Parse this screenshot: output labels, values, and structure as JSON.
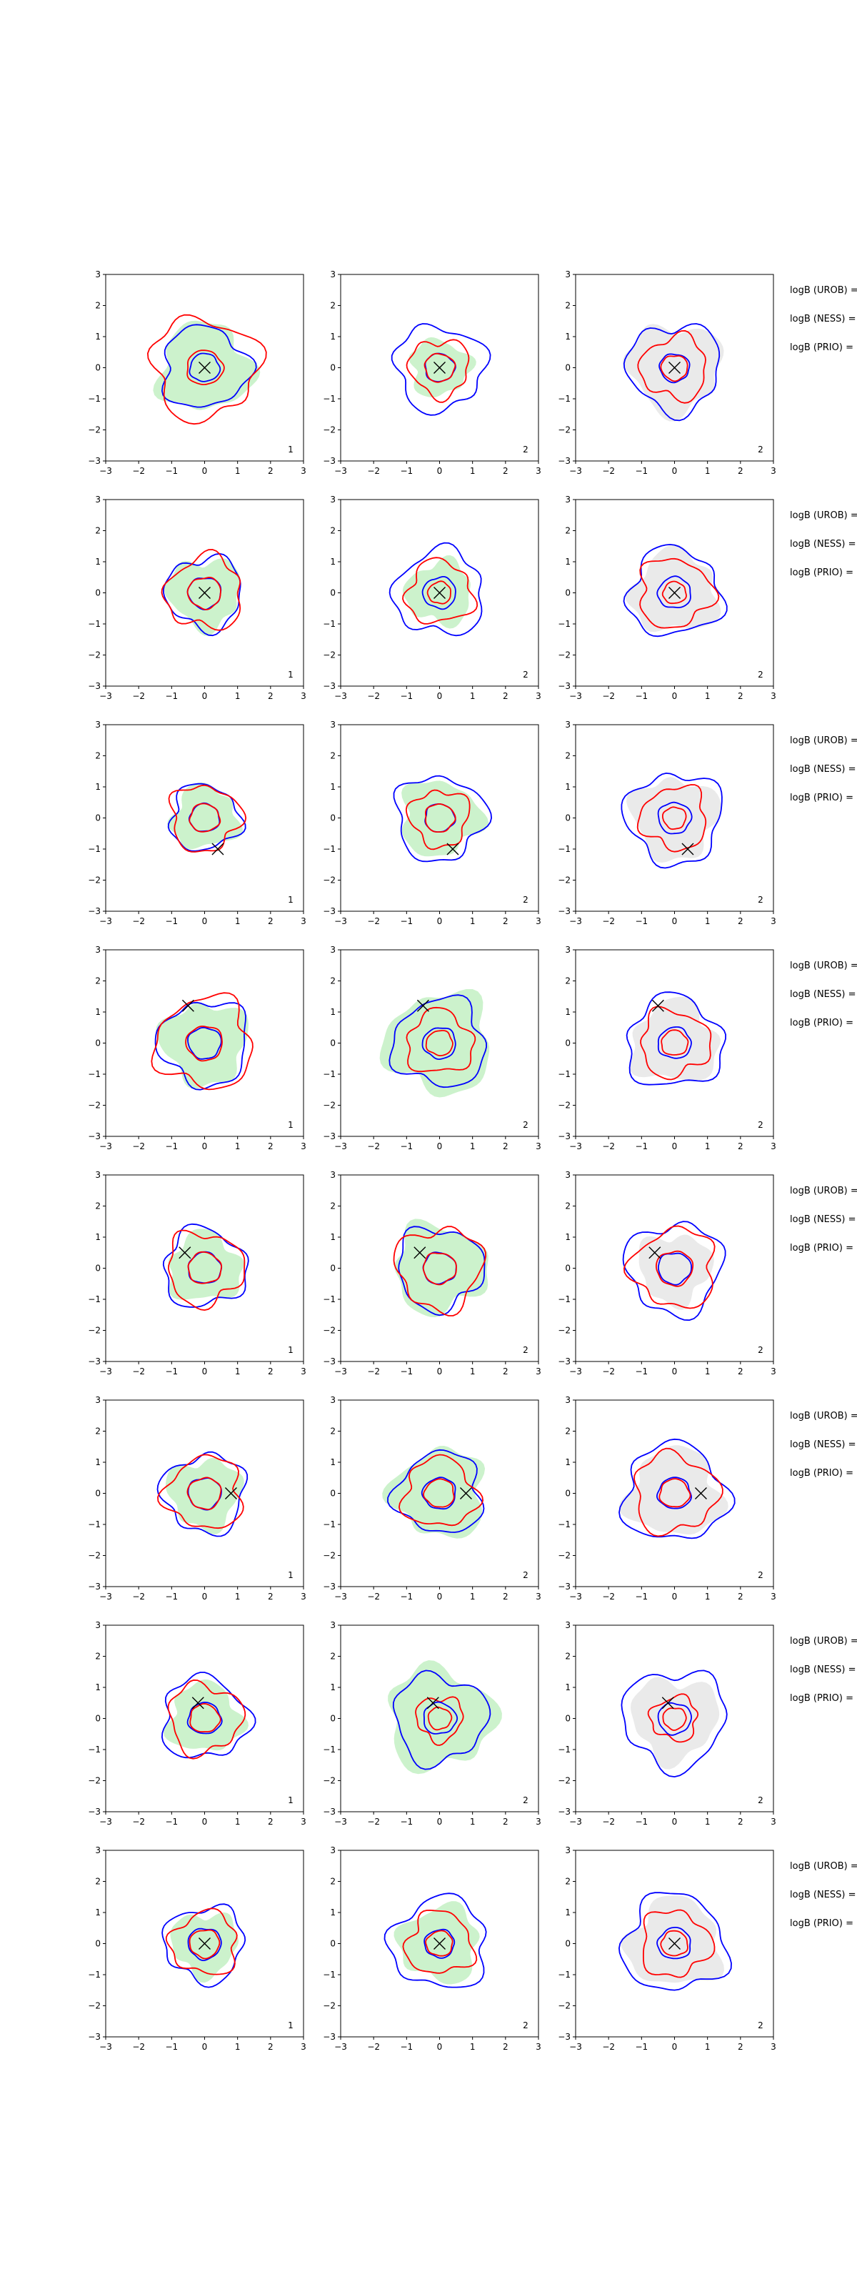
{
  "colors": {
    "fill_green": "#ccf2cc",
    "fill_gray": "#eaeaea",
    "contour_blue": "#0000ff",
    "contour_red": "#ff0000",
    "marker": "#000000"
  },
  "row_labels": [
    "logB (UROB) =",
    "logB (NESS) =",
    "logB (PRIO) ="
  ],
  "chart_data": {
    "type": "contour-grid",
    "rows": 8,
    "cols": 3,
    "xlim": [
      -3,
      3
    ],
    "ylim": [
      -3,
      3
    ],
    "xticks": [
      "−3",
      "−2",
      "−1",
      "0",
      "1",
      "2",
      "3"
    ],
    "yticks": [
      "−3",
      "−2",
      "−1",
      "0",
      "1",
      "2",
      "3"
    ],
    "column_fill": [
      "green",
      "green",
      "gray"
    ],
    "grid": false,
    "panels": [
      [
        {
          "marker": [
            0,
            0
          ],
          "corner": "1",
          "blue": [
            1.3,
            0.45
          ],
          "red": [
            1.6,
            0.55
          ],
          "fill": 1.4
        },
        {
          "marker": [
            0,
            0
          ],
          "corner": "2",
          "blue": [
            1.35,
            0.45
          ],
          "red": [
            0.9,
            0.45
          ],
          "fill": 0.9
        },
        {
          "marker": [
            0,
            0
          ],
          "corner": "2",
          "blue": [
            1.4,
            0.45
          ],
          "red": [
            1.0,
            0.4
          ],
          "fill": 1.4
        }
      ],
      [
        {
          "marker": [
            0,
            0
          ],
          "corner": "1",
          "blue": [
            1.15,
            0.5
          ],
          "red": [
            1.15,
            0.5
          ],
          "fill": 1.1
        },
        {
          "marker": [
            0,
            0
          ],
          "corner": "2",
          "blue": [
            1.35,
            0.5
          ],
          "red": [
            1.0,
            0.35
          ],
          "fill": 1.0
        },
        {
          "marker": [
            0,
            0
          ],
          "corner": "2",
          "blue": [
            1.4,
            0.5
          ],
          "red": [
            1.1,
            0.35
          ],
          "fill": 1.3
        }
      ],
      [
        {
          "marker": [
            0.4,
            -1.0
          ],
          "corner": "1",
          "blue": [
            1.05,
            0.45
          ],
          "red": [
            1.05,
            0.45
          ],
          "fill": 1.0
        },
        {
          "marker": [
            0.4,
            -1.0
          ],
          "corner": "2",
          "blue": [
            1.35,
            0.45
          ],
          "red": [
            0.9,
            0.45
          ],
          "fill": 1.2
        },
        {
          "marker": [
            0.4,
            -1.0
          ],
          "corner": "2",
          "blue": [
            1.45,
            0.5
          ],
          "red": [
            1.0,
            0.35
          ],
          "fill": 1.3
        }
      ],
      [
        {
          "marker": [
            -0.5,
            1.2
          ],
          "corner": "1",
          "blue": [
            1.35,
            0.5
          ],
          "red": [
            1.45,
            0.55
          ],
          "fill": 1.3
        },
        {
          "marker": [
            -0.5,
            1.2
          ],
          "corner": "2",
          "blue": [
            1.4,
            0.5
          ],
          "red": [
            1.0,
            0.4
          ],
          "fill": 1.6
        },
        {
          "marker": [
            -0.5,
            1.2
          ],
          "corner": "2",
          "blue": [
            1.45,
            0.5
          ],
          "red": [
            1.05,
            0.4
          ],
          "fill": 1.3
        }
      ],
      [
        {
          "marker": [
            -0.6,
            0.5
          ],
          "corner": "1",
          "blue": [
            1.25,
            0.5
          ],
          "red": [
            1.15,
            0.5
          ],
          "fill": 1.1
        },
        {
          "marker": [
            -0.6,
            0.5
          ],
          "corner": "2",
          "blue": [
            1.3,
            0.5
          ],
          "red": [
            1.3,
            0.5
          ],
          "fill": 1.4
        },
        {
          "marker": [
            -0.6,
            0.5
          ],
          "corner": "2",
          "blue": [
            1.45,
            0.5
          ],
          "red": [
            1.25,
            0.55
          ],
          "fill": 1.1
        }
      ],
      [
        {
          "marker": [
            0.8,
            0
          ],
          "corner": "1",
          "blue": [
            1.25,
            0.5
          ],
          "red": [
            1.15,
            0.5
          ],
          "fill": 1.1
        },
        {
          "marker": [
            0.8,
            0
          ],
          "corner": "2",
          "blue": [
            1.3,
            0.5
          ],
          "red": [
            1.1,
            0.45
          ],
          "fill": 1.4
        },
        {
          "marker": [
            0.8,
            0
          ],
          "corner": "2",
          "blue": [
            1.55,
            0.5
          ],
          "red": [
            1.25,
            0.45
          ],
          "fill": 1.4
        }
      ],
      [
        {
          "marker": [
            -0.2,
            0.5
          ],
          "corner": "1",
          "blue": [
            1.3,
            0.5
          ],
          "red": [
            1.1,
            0.45
          ],
          "fill": 1.1
        },
        {
          "marker": [
            -0.2,
            0.5
          ],
          "corner": "2",
          "blue": [
            1.4,
            0.5
          ],
          "red": [
            0.7,
            0.35
          ],
          "fill": 1.6
        },
        {
          "marker": [
            -0.2,
            0.5
          ],
          "corner": "2",
          "blue": [
            1.55,
            0.5
          ],
          "red": [
            0.7,
            0.35
          ],
          "fill": 1.3
        }
      ],
      [
        {
          "marker": [
            0,
            0
          ],
          "corner": "1",
          "blue": [
            1.2,
            0.5
          ],
          "red": [
            1.0,
            0.45
          ],
          "fill": 1.0
        },
        {
          "marker": [
            0,
            0
          ],
          "corner": "2",
          "blue": [
            1.45,
            0.45
          ],
          "red": [
            1.0,
            0.4
          ],
          "fill": 1.2
        },
        {
          "marker": [
            0,
            0
          ],
          "corner": "2",
          "blue": [
            1.55,
            0.5
          ],
          "red": [
            1.05,
            0.4
          ],
          "fill": 1.4
        }
      ]
    ]
  }
}
